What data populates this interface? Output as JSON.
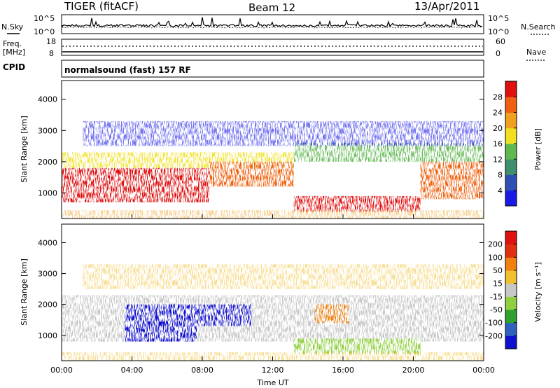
{
  "header": {
    "radar": "TIGER (fitACF)",
    "beam": "Beam 12",
    "date": "13/Apr/2011"
  },
  "side_labels": {
    "nsky": "N.Sky",
    "nsearch": "N.Search",
    "freq_line1": "Freq.",
    "freq_line2": "[MHz]",
    "nave": "Nave",
    "cpid": "CPID",
    "cp_name": "normalsound (fast) 157 RF"
  },
  "noise_panel": {
    "left_ticks": [
      "10^5",
      "10^0"
    ],
    "right_ticks": [
      "10^5",
      "10^0"
    ]
  },
  "freq_panel": {
    "left_ticks": [
      "18",
      "8"
    ],
    "right_ticks": [
      "60",
      "0"
    ]
  },
  "chart_data": [
    {
      "type": "heatmap",
      "name": "power",
      "ylabel": "Slant Range [km]",
      "ylim": [
        180,
        4600
      ],
      "yticks": [
        "1000",
        "2000",
        "3000",
        "4000"
      ],
      "colorbar": {
        "label": "Power [dB]",
        "ticks": [
          "4",
          "8",
          "12",
          "16",
          "20",
          "24",
          "28"
        ],
        "colors": [
          "#1a1ae6",
          "#2f4fb4",
          "#3f8f6f",
          "#5fb84f",
          "#f0e020",
          "#f0a020",
          "#f06010",
          "#e01010"
        ]
      }
    },
    {
      "type": "heatmap",
      "name": "velocity",
      "ylabel": "Slant Range [km]",
      "ylim": [
        180,
        4600
      ],
      "yticks": [
        "1000",
        "2000",
        "3000",
        "4000"
      ],
      "xlabel": "Time UT",
      "xticks": [
        "00:00",
        "04:00",
        "08:00",
        "12:00",
        "16:00",
        "20:00",
        "00:00"
      ],
      "colorbar": {
        "label": "Velocity [m s⁻¹]",
        "ticks": [
          "200",
          "100",
          "50",
          "15",
          "-15",
          "-50",
          "-100",
          "-200"
        ],
        "colors": [
          "#1010d0",
          "#3060c0",
          "#30a030",
          "#90d040",
          "#c8c8c8",
          "#f0c030",
          "#f08010",
          "#e03010",
          "#e01010"
        ]
      }
    }
  ]
}
